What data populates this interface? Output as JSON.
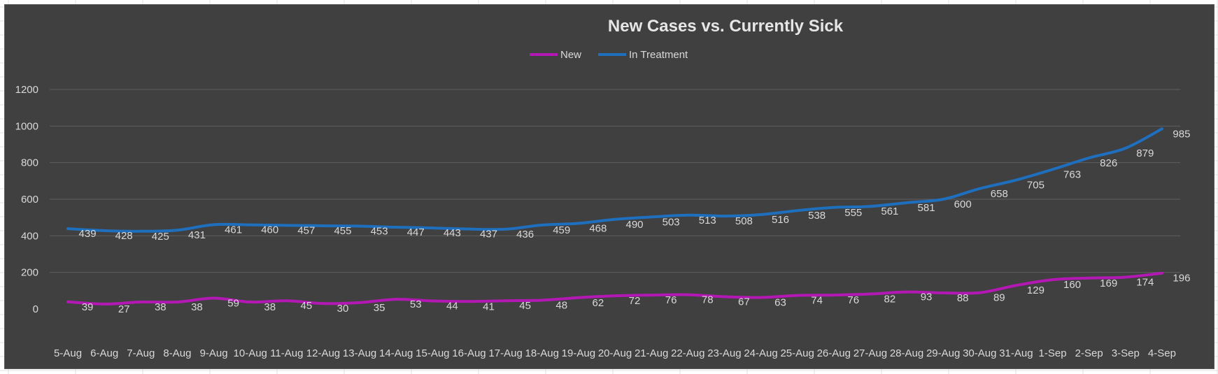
{
  "chart_data": {
    "type": "line",
    "title": "New Cases vs. Currently Sick",
    "xlabel": "",
    "ylabel": "",
    "ylim": [
      0,
      1200
    ],
    "yticks": [
      "0",
      "200",
      "400",
      "600",
      "800",
      "1000",
      "1200"
    ],
    "grid": true,
    "legend_position": "top-center",
    "categories": [
      "5-Aug",
      "6-Aug",
      "7-Aug",
      "8-Aug",
      "9-Aug",
      "10-Aug",
      "11-Aug",
      "12-Aug",
      "13-Aug",
      "14-Aug",
      "15-Aug",
      "16-Aug",
      "17-Aug",
      "18-Aug",
      "19-Aug",
      "20-Aug",
      "21-Aug",
      "22-Aug",
      "23-Aug",
      "24-Aug",
      "25-Aug",
      "26-Aug",
      "27-Aug",
      "28-Aug",
      "29-Aug",
      "30-Aug",
      "31-Aug",
      "1-Sep",
      "2-Sep",
      "3-Sep",
      "4-Sep"
    ],
    "series": [
      {
        "name": "New",
        "color": "#b418b4",
        "values": [
          39,
          27,
          38,
          38,
          59,
          38,
          45,
          30,
          35,
          53,
          44,
          41,
          45,
          48,
          62,
          72,
          76,
          78,
          67,
          63,
          74,
          76,
          82,
          93,
          88,
          89,
          129,
          160,
          169,
          174,
          196
        ],
        "labels": [
          "39",
          "27",
          "38",
          "38",
          "59",
          "38",
          "45",
          "30",
          "35",
          "53",
          "44",
          "41",
          "45",
          "48",
          "62",
          "72",
          "76",
          "78",
          "67",
          "63",
          "74",
          "76",
          "82",
          "93",
          "88",
          "89",
          "129",
          "160",
          "169",
          "174",
          "196"
        ]
      },
      {
        "name": "In Treatment",
        "color": "#1f6fbf",
        "values": [
          439,
          428,
          425,
          431,
          461,
          460,
          457,
          455,
          453,
          447,
          443,
          437,
          436,
          459,
          468,
          490,
          503,
          513,
          508,
          516,
          538,
          555,
          561,
          581,
          600,
          658,
          705,
          763,
          826,
          879,
          985
        ],
        "labels": [
          "439",
          "428",
          "425",
          "431",
          "461",
          "460",
          "457",
          "455",
          "453",
          "447",
          "443",
          "437",
          "436",
          "459",
          "468",
          "490",
          "503",
          "513",
          "508",
          "516",
          "538",
          "555",
          "561",
          "581",
          "600",
          "658",
          "705",
          "763",
          "826",
          "879",
          "985"
        ]
      }
    ]
  }
}
